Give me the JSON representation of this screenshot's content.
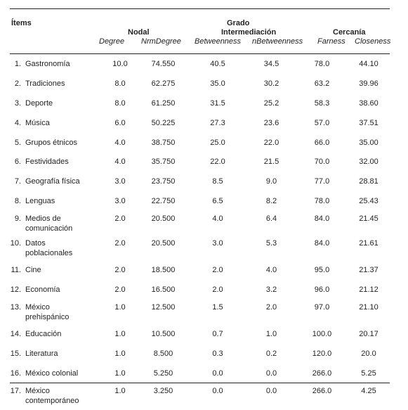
{
  "headers": {
    "items": "Ítems",
    "nodal": "Nodal",
    "grado_line1": "Grado",
    "grado_line2": "Intermediación",
    "cercania": "Cercanía",
    "degree": "Degree",
    "nrmdegree": "NrmDegree",
    "betweenness": "Betweenness",
    "nbetweenness": "nBetweenness",
    "farness": "Farness",
    "closeness": "Closeness"
  },
  "rows": [
    {
      "idx": "1.",
      "name": "Gastronomía",
      "degree": "10.0",
      "nrmdegree": "74.550",
      "betweenness": "40.5",
      "nbetweenness": "34.5",
      "farness": "78.0",
      "closeness": "44.10"
    },
    {
      "idx": "2.",
      "name": "Tradiciones",
      "degree": "8.0",
      "nrmdegree": "62.275",
      "betweenness": "35.0",
      "nbetweenness": "30.2",
      "farness": "63.2",
      "closeness": "39.96"
    },
    {
      "idx": "3.",
      "name": "Deporte",
      "degree": "8.0",
      "nrmdegree": "61.250",
      "betweenness": "31.5",
      "nbetweenness": "25.2",
      "farness": "58.3",
      "closeness": "38.60"
    },
    {
      "idx": "4.",
      "name": "Música",
      "degree": "6.0",
      "nrmdegree": "50.225",
      "betweenness": "27.3",
      "nbetweenness": "23.6",
      "farness": "57.0",
      "closeness": "37.51"
    },
    {
      "idx": "5.",
      "name": "Grupos étnicos",
      "degree": "4.0",
      "nrmdegree": "38.750",
      "betweenness": "25.0",
      "nbetweenness": "22.0",
      "farness": "66.0",
      "closeness": "35.00"
    },
    {
      "idx": "6.",
      "name": "Festividades",
      "degree": "4.0",
      "nrmdegree": "35.750",
      "betweenness": "22.0",
      "nbetweenness": "21.5",
      "farness": "70.0",
      "closeness": "32.00"
    },
    {
      "idx": "7.",
      "name": "Geografía física",
      "degree": "3.0",
      "nrmdegree": "23.750",
      "betweenness": "8.5",
      "nbetweenness": "9.0",
      "farness": "77.0",
      "closeness": "28.81"
    },
    {
      "idx": "8.",
      "name": "Lenguas",
      "degree": "3.0",
      "nrmdegree": "22.750",
      "betweenness": "6.5",
      "nbetweenness": "8.2",
      "farness": "78.0",
      "closeness": "25.43"
    },
    {
      "idx": "9.",
      "name": "Medios de",
      "name2": "comunicación",
      "degree": "2.0",
      "nrmdegree": "20.500",
      "betweenness": "4.0",
      "nbetweenness": "6.4",
      "farness": "84.0",
      "closeness": "21.45"
    },
    {
      "idx": "10.",
      "name": "Datos",
      "name2": "poblacionales",
      "degree": "2.0",
      "nrmdegree": "20.500",
      "betweenness": "3.0",
      "nbetweenness": "5.3",
      "farness": "84.0",
      "closeness": "21.61"
    },
    {
      "idx": "11.",
      "name": "Cine",
      "degree": "2.0",
      "nrmdegree": "18.500",
      "betweenness": "2.0",
      "nbetweenness": "4.0",
      "farness": "95.0",
      "closeness": "21.37"
    },
    {
      "idx": "12.",
      "name": "Economía",
      "degree": "2.0",
      "nrmdegree": "16.500",
      "betweenness": "2.0",
      "nbetweenness": "3.2",
      "farness": "96.0",
      "closeness": "21.12"
    },
    {
      "idx": "13.",
      "name": "México",
      "name2": "prehispánico",
      "degree": "1.0",
      "nrmdegree": "12.500",
      "betweenness": "1.5",
      "nbetweenness": "2.0",
      "farness": "97.0",
      "closeness": "21.10"
    },
    {
      "idx": "14.",
      "name": "Educación",
      "degree": "1.0",
      "nrmdegree": "10.500",
      "betweenness": "0.7",
      "nbetweenness": "1.0",
      "farness": "100.0",
      "closeness": "20.17"
    },
    {
      "idx": "15.",
      "name": "Literatura",
      "degree": "1.0",
      "nrmdegree": "8.500",
      "betweenness": "0.3",
      "nbetweenness": "0.2",
      "farness": "120.0",
      "closeness": "20.0"
    },
    {
      "idx": "16.",
      "name": "México colonial",
      "degree": "1.0",
      "nrmdegree": "5.250",
      "betweenness": "0.0",
      "nbetweenness": "0.0",
      "farness": "266.0",
      "closeness": "5.25"
    },
    {
      "idx": "17.",
      "name": "México",
      "name2": "contemporáneo",
      "degree": "1.0",
      "nrmdegree": "3.250",
      "betweenness": "0.0",
      "nbetweenness": "0.0",
      "farness": "266.0",
      "closeness": "4.25"
    }
  ]
}
